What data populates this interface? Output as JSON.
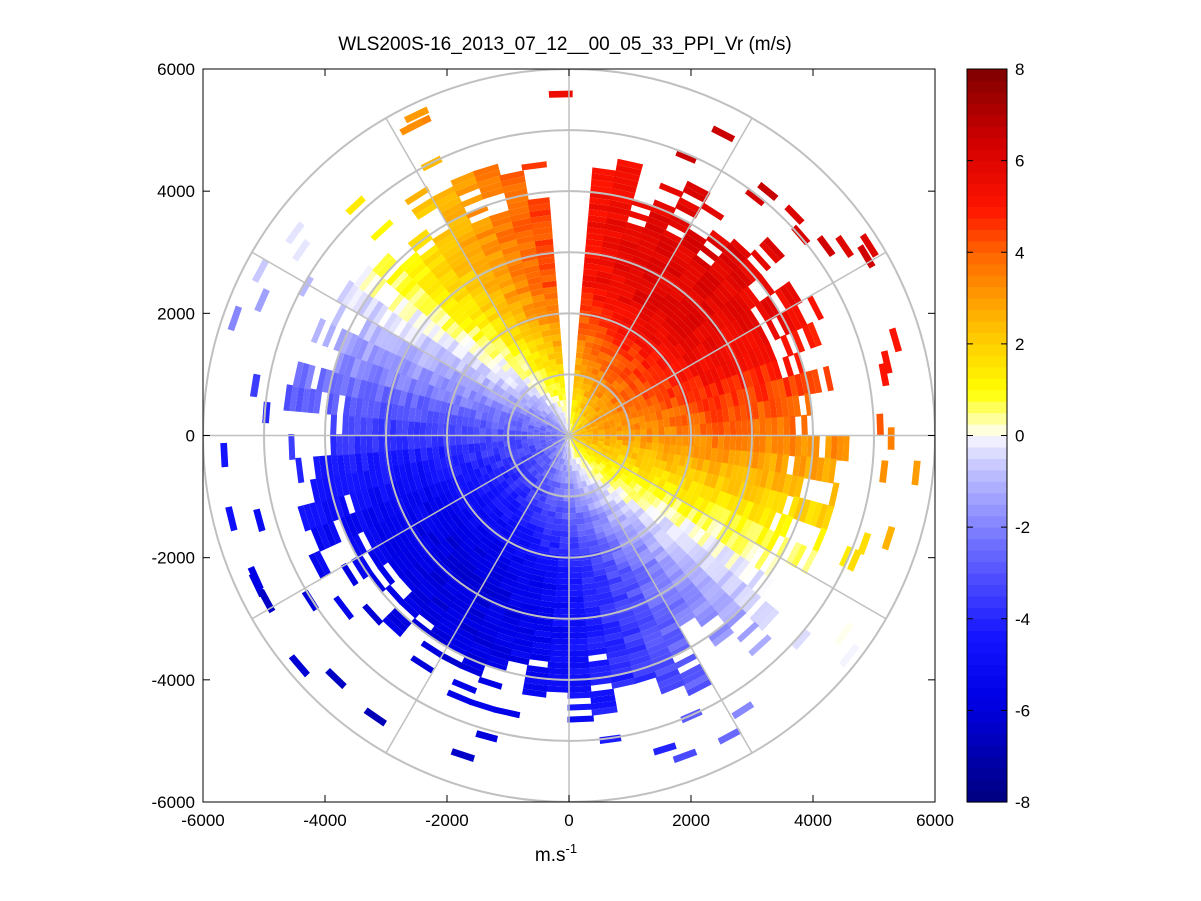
{
  "chart_data": {
    "type": "heatmap",
    "subtype": "polar-ppi",
    "title": "WLS200S-16_2013_07_12__00_05_33_PPI_Vr (m/s)",
    "xlabel_base": "m.s",
    "xlabel_exponent": "-1",
    "ylabel": "",
    "xlim": [
      -6000,
      6000
    ],
    "ylim": [
      -6000,
      6000
    ],
    "x_ticks": [
      -6000,
      -4000,
      -2000,
      0,
      2000,
      4000,
      6000
    ],
    "y_ticks": [
      -6000,
      -4000,
      -2000,
      0,
      2000,
      4000,
      6000
    ],
    "x_tick_labels": [
      "-6000",
      "-4000",
      "-2000",
      "0",
      "2000",
      "4000",
      "6000"
    ],
    "y_tick_labels": [
      "-6000",
      "-4000",
      "-2000",
      "0",
      "2000",
      "4000",
      "6000"
    ],
    "range_rings": [
      1000,
      2000,
      3000,
      4000,
      5000,
      6000
    ],
    "spoke_angles_deg": [
      0,
      30,
      60,
      90,
      120,
      150,
      180,
      210,
      240,
      270,
      300,
      330
    ],
    "max_range": 6000,
    "colorbar": {
      "min": -8,
      "max": 8,
      "ticks": [
        -8,
        -6,
        -4,
        -2,
        0,
        2,
        4,
        6,
        8
      ],
      "tick_labels": [
        "-8",
        "-6",
        "-4",
        "-2",
        "0",
        "2",
        "4",
        "6",
        "8"
      ],
      "levels": 64
    },
    "field_model": {
      "description": "Radial velocity pattern: positive (receding) to the north/north-east, negative (approaching) to the south/south-west, zero line running roughly west-east with a spiral near origin",
      "dominant_positive_bearing_deg": 35,
      "peak_speed_ms": 6,
      "data_coverage_range_m": 4700,
      "blind_sector_bearing_deg": [
        -3,
        4
      ]
    },
    "colors": {
      "deep_blue": "#00007f",
      "blue": "#0000ff",
      "white": "#ffffff",
      "yellow": "#ffff00",
      "red": "#ff0000",
      "dark_red": "#7f0000",
      "grid": "#c0c0c0"
    }
  }
}
